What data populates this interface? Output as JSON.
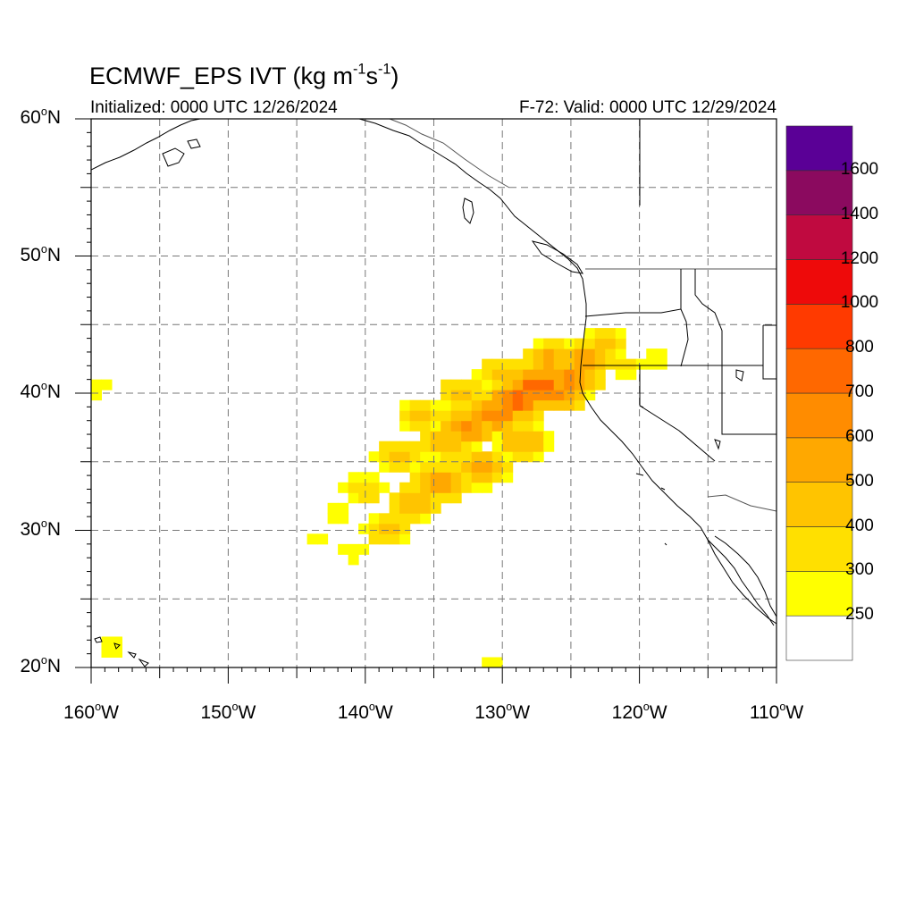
{
  "header": {
    "title_main": "ECMWF_EPS IVT (kg m",
    "title_exp1": "-1",
    "title_mid": "s",
    "title_exp2": "-1",
    "title_end": ")",
    "init_text": "Initialized: 0000 UTC 12/26/2024",
    "valid_text": "F-72: Valid: 0000 UTC 12/29/2024"
  },
  "map": {
    "lat_labels": [
      {
        "deg": "60",
        "unit": "o",
        "hem": "N",
        "value": 60
      },
      {
        "deg": "50",
        "unit": "o",
        "hem": "N",
        "value": 50
      },
      {
        "deg": "40",
        "unit": "o",
        "hem": "N",
        "value": 40
      },
      {
        "deg": "30",
        "unit": "o",
        "hem": "N",
        "value": 30
      },
      {
        "deg": "20",
        "unit": "o",
        "hem": "N",
        "value": 20
      }
    ],
    "lon_labels": [
      {
        "deg": "160",
        "unit": "o",
        "hem": "W",
        "value": -160
      },
      {
        "deg": "150",
        "unit": "o",
        "hem": "W",
        "value": -150
      },
      {
        "deg": "140",
        "unit": "o",
        "hem": "W",
        "value": -140
      },
      {
        "deg": "130",
        "unit": "o",
        "hem": "W",
        "value": -130
      },
      {
        "deg": "120",
        "unit": "o",
        "hem": "W",
        "value": -120
      },
      {
        "deg": "110",
        "unit": "o",
        "hem": "W",
        "value": -110
      }
    ],
    "lon_range": [
      -160,
      -110
    ],
    "lat_range": [
      20,
      60
    ],
    "grid": "dashed every 5 degrees",
    "colors": {
      "coast": "#000000",
      "border": "#555555",
      "grid": "#777777"
    }
  },
  "colorbar": {
    "labels": [
      "250",
      "300",
      "400",
      "500",
      "600",
      "700",
      "800",
      "1000",
      "1200",
      "1400",
      "1600"
    ],
    "colors": [
      "#ffffff",
      "#ffff00",
      "#ffe000",
      "#ffc400",
      "#ffa800",
      "#ff8c00",
      "#ff6800",
      "#ff3a00",
      "#ee0a0a",
      "#c00a40",
      "#8b0a5f",
      "#5a0096"
    ]
  },
  "ivt_field": {
    "description_levels_kg_m-1_s-1": [
      250,
      300,
      400,
      500,
      600,
      700,
      800
    ],
    "plumes": [
      {
        "lon": -143.5,
        "lat": 29.5,
        "v": 270
      },
      {
        "lon": -142,
        "lat": 31,
        "v": 300
      },
      {
        "lon": -141,
        "lat": 28.5,
        "v": 300
      },
      {
        "lon": -140,
        "lat": 33,
        "v": 380
      },
      {
        "lon": -138.5,
        "lat": 30,
        "v": 430
      },
      {
        "lon": -137.5,
        "lat": 35.5,
        "v": 450
      },
      {
        "lon": -136.5,
        "lat": 32,
        "v": 520
      },
      {
        "lon": -136,
        "lat": 38.5,
        "v": 420
      },
      {
        "lon": -134.5,
        "lat": 33.5,
        "v": 620
      },
      {
        "lon": -134,
        "lat": 36.5,
        "v": 520
      },
      {
        "lon": -133,
        "lat": 40,
        "v": 430
      },
      {
        "lon": -132.5,
        "lat": 37.5,
        "v": 640
      },
      {
        "lon": -131.5,
        "lat": 34.5,
        "v": 560
      },
      {
        "lon": -130.5,
        "lat": 38.5,
        "v": 680
      },
      {
        "lon": -130,
        "lat": 41.5,
        "v": 470
      },
      {
        "lon": -129,
        "lat": 39.5,
        "v": 760
      },
      {
        "lon": -128.5,
        "lat": 36.5,
        "v": 520
      },
      {
        "lon": -127.5,
        "lat": 40.5,
        "v": 800
      },
      {
        "lon": -126.5,
        "lat": 42.5,
        "v": 540
      },
      {
        "lon": -126,
        "lat": 40,
        "v": 620
      },
      {
        "lon": -125,
        "lat": 41,
        "v": 640
      },
      {
        "lon": -124,
        "lat": 42.5,
        "v": 560
      },
      {
        "lon": -122.5,
        "lat": 43.5,
        "v": 420
      },
      {
        "lon": -121,
        "lat": 42,
        "v": 330
      },
      {
        "lon": -118.5,
        "lat": 42.5,
        "v": 290
      },
      {
        "lon": -159.5,
        "lat": 40.5,
        "v": 300
      },
      {
        "lon": -158.5,
        "lat": 21.5,
        "v": 270
      },
      {
        "lon": -131,
        "lat": 20.3,
        "v": 270
      }
    ]
  }
}
